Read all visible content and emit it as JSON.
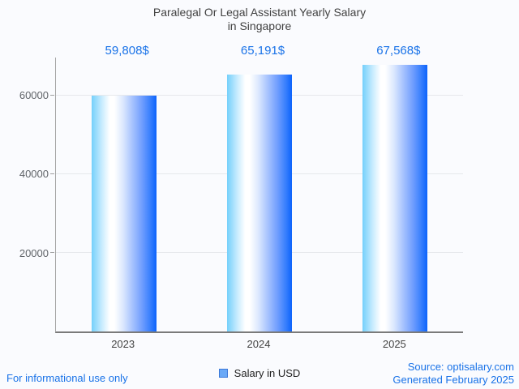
{
  "chart_data": {
    "type": "bar",
    "title_line1": "Paralegal Or Legal Assistant Yearly Salary",
    "title_line2": "in Singapore",
    "categories": [
      "2023",
      "2024",
      "2025"
    ],
    "series": [
      {
        "name": "Salary in USD",
        "values": [
          59808,
          65191,
          67568
        ]
      }
    ],
    "value_labels": [
      "59,808$",
      "65,191$",
      "67,568$"
    ],
    "ytick_values": [
      20000,
      40000,
      60000
    ],
    "ytick_labels": [
      "20000",
      "40000",
      "60000"
    ],
    "ylim": [
      0,
      69500
    ],
    "grid": true,
    "legend_position": "bottom"
  },
  "legend": {
    "label": "Salary in USD",
    "marker_color": "#6aa9f7",
    "marker_border_color": "#3b78d8"
  },
  "footer": {
    "disclaimer": "For informational use only",
    "source": "Source: optisalary.com",
    "generated": "Generated February 2025"
  },
  "colors": {
    "accent_blue": "#1a73e8",
    "title_text": "#424242",
    "axis_text": "#5f6368",
    "category_text": "#424242",
    "background": "#fafbfe",
    "gridline": "#e6e8ec",
    "axis_line": "#a6a6a6",
    "baseline": "#7a7a7a",
    "bar_gradient_start": "#74d0fb",
    "bar_gradient_mid": "#ffffff",
    "bar_gradient_end": "#0c63fc"
  }
}
